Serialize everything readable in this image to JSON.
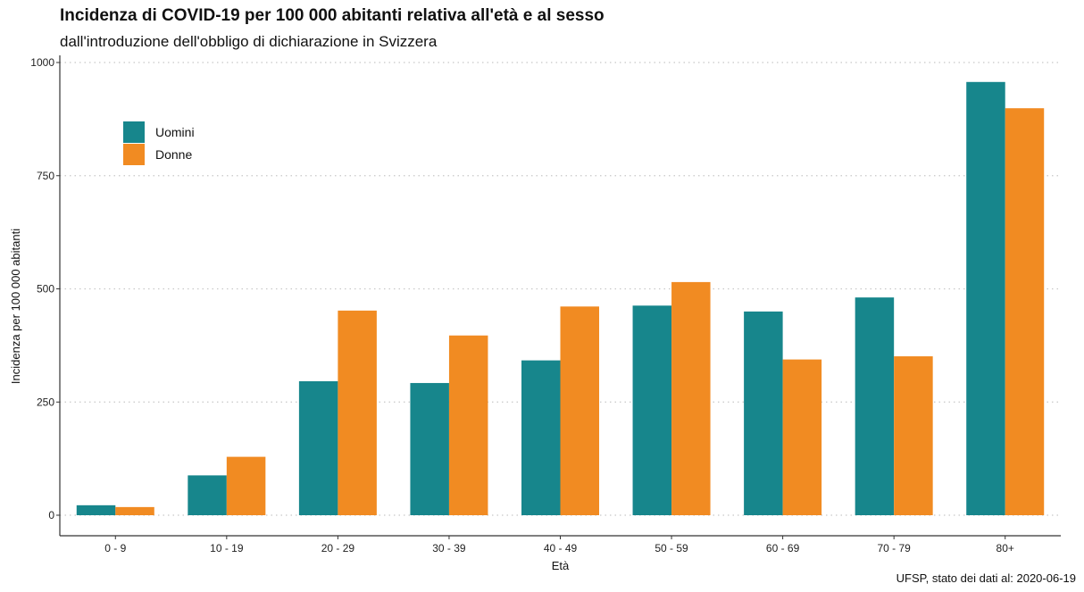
{
  "chart_data": {
    "type": "bar",
    "title": "Incidenza di COVID-19 per 100 000 abitanti relativa all'età e al sesso",
    "subtitle": "dall'introduzione dell'obbligo di dichiarazione in Svizzera",
    "xlabel": "Età",
    "ylabel": "Incidenza per 100 000 abitanti",
    "caption": "UFSP, stato dei dati al: 2020-06-19",
    "categories": [
      "0 - 9",
      "10 - 19",
      "20 - 29",
      "30 - 39",
      "40 - 49",
      "50 - 59",
      "60 - 69",
      "70 - 79",
      "80+"
    ],
    "series": [
      {
        "name": "Uomini",
        "color": "#17868C",
        "values": [
          22,
          88,
          296,
          292,
          342,
          463,
          450,
          481,
          957
        ]
      },
      {
        "name": "Donne",
        "color": "#F18B22",
        "values": [
          18,
          129,
          452,
          397,
          461,
          515,
          344,
          351,
          899
        ]
      }
    ],
    "ylim": [
      0,
      1000
    ],
    "yticks": [
      0,
      250,
      500,
      750,
      1000
    ],
    "grid": "horizontal dotted",
    "legend_position": "top-left"
  }
}
